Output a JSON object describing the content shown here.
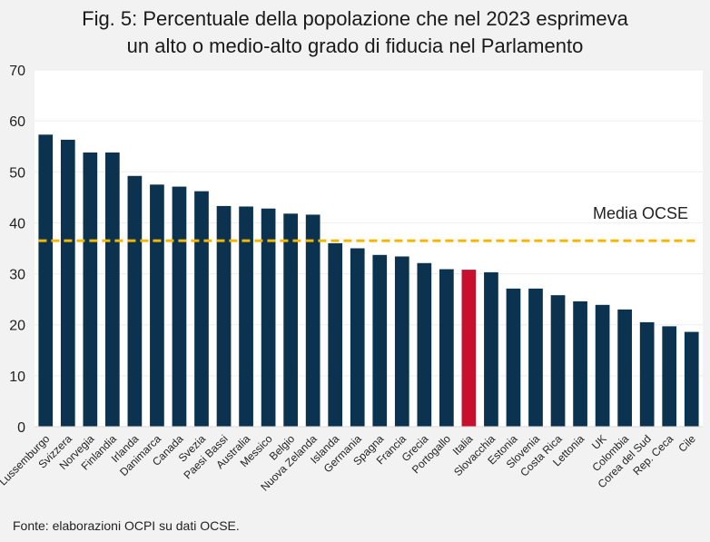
{
  "title_line1": "Fig. 5: Percentuale della popolazione che nel 2023 esprimeva",
  "title_line2": "un alto o medio-alto grado di fiducia nel Parlamento",
  "source": "Fonte: elaborazioni OCPI su dati OCSE.",
  "colors": {
    "bar": "#0b3350",
    "highlight": "#c8102e",
    "average_line": "#f2b705",
    "plot_bg": "#ffffff",
    "grid": "#eeeeee"
  },
  "chart_data": {
    "type": "bar",
    "title": "Fig. 5: Percentuale della popolazione che nel 2023 esprimeva un alto o medio-alto grado di fiducia nel Parlamento",
    "xlabel": "",
    "ylabel": "",
    "ylim": [
      0,
      70
    ],
    "yticks": [
      0,
      10,
      20,
      30,
      40,
      50,
      60,
      70
    ],
    "grid": true,
    "categories": [
      "Lussemburgo",
      "Svizzera",
      "Norvegia",
      "Finlandia",
      "Irlanda",
      "Danimarca",
      "Canada",
      "Svezia",
      "Paesi Bassi",
      "Australia",
      "Messico",
      "Belgio",
      "Nuova Zelanda",
      "Islanda",
      "Germania",
      "Spagna",
      "Francia",
      "Grecia",
      "Portogallo",
      "Italia",
      "Slovacchia",
      "Estonia",
      "Slovenia",
      "Costa Rica",
      "Lettonia",
      "UK",
      "Colombia",
      "Corea del Sud",
      "Rep. Ceca",
      "Cile"
    ],
    "values": [
      57.3,
      56.3,
      53.8,
      53.8,
      49.2,
      47.5,
      47.1,
      46.2,
      43.3,
      43.2,
      42.8,
      41.8,
      41.6,
      36.0,
      35.0,
      33.7,
      33.4,
      32.1,
      30.9,
      30.8,
      30.3,
      27.1,
      27.1,
      25.8,
      24.6,
      23.9,
      23.0,
      20.5,
      19.7,
      18.6
    ],
    "highlight_category": "Italia",
    "average": {
      "label": "Media OCSE",
      "value": 36.5
    }
  }
}
